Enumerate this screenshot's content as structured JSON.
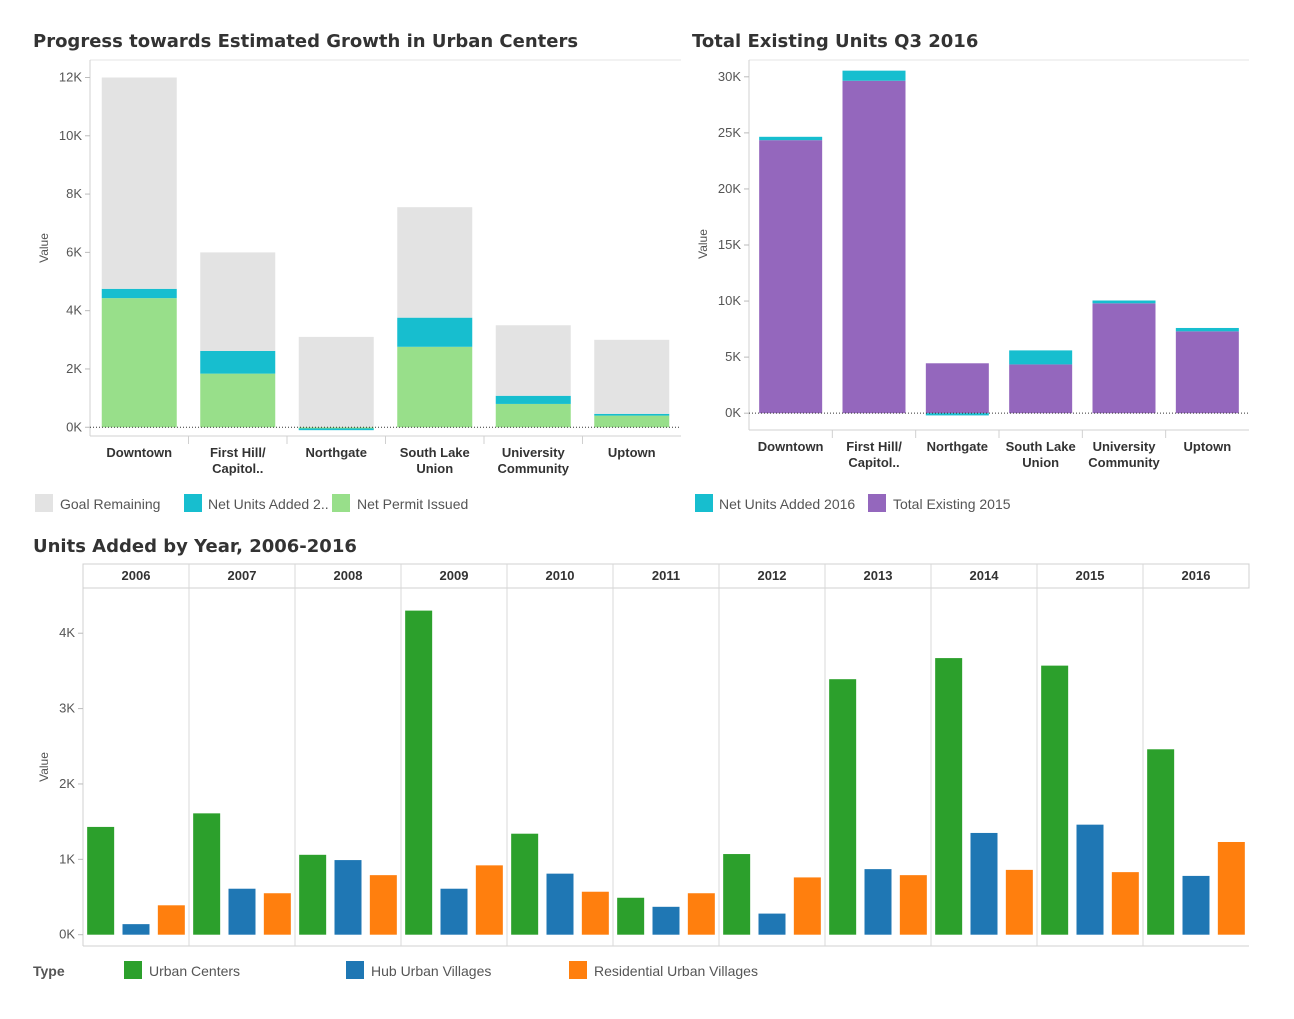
{
  "chart_data": [
    {
      "id": "progress",
      "type": "bar",
      "stacked": true,
      "title": "Progress towards Estimated Growth in Urban Centers",
      "ylabel": "Value",
      "ylim": [
        -300,
        12600
      ],
      "yticks": [
        {
          "v": 0,
          "label": "0K"
        },
        {
          "v": 2000,
          "label": "2K"
        },
        {
          "v": 4000,
          "label": "4K"
        },
        {
          "v": 6000,
          "label": "6K"
        },
        {
          "v": 8000,
          "label": "8K"
        },
        {
          "v": 10000,
          "label": "10K"
        },
        {
          "v": 12000,
          "label": "12K"
        }
      ],
      "categories": [
        [
          "Downtown"
        ],
        [
          "First Hill/",
          "Capitol.."
        ],
        [
          "Northgate"
        ],
        [
          "South Lake",
          "Union"
        ],
        [
          "University",
          "Community"
        ],
        [
          "Uptown"
        ]
      ],
      "series": [
        {
          "name": "Net Permit Issued",
          "color": "#98df8a",
          "values": [
            4430,
            1840,
            -40,
            2760,
            800,
            400
          ]
        },
        {
          "name": "Net Units Added 2..",
          "color": "#17becf",
          "values": [
            320,
            780,
            -60,
            1000,
            280,
            60
          ]
        },
        {
          "name": "Goal Remaining",
          "color": "#e3e3e3",
          "values": [
            7250,
            3380,
            3100,
            3790,
            2420,
            2540
          ]
        }
      ],
      "legend": [
        {
          "label": "Goal Remaining",
          "color": "#e3e3e3"
        },
        {
          "label": "Net Units Added 2..",
          "color": "#17becf"
        },
        {
          "label": "Net Permit Issued",
          "color": "#98df8a"
        }
      ]
    },
    {
      "id": "existing",
      "type": "bar",
      "stacked": true,
      "title": "Total Existing Units Q3 2016",
      "ylabel": "Value",
      "ylim": [
        -1500,
        31500
      ],
      "yticks": [
        {
          "v": 0,
          "label": "0K"
        },
        {
          "v": 5000,
          "label": "5K"
        },
        {
          "v": 10000,
          "label": "10K"
        },
        {
          "v": 15000,
          "label": "15K"
        },
        {
          "v": 20000,
          "label": "20K"
        },
        {
          "v": 25000,
          "label": "25K"
        },
        {
          "v": 30000,
          "label": "30K"
        }
      ],
      "categories": [
        [
          "Downtown"
        ],
        [
          "First Hill/",
          "Capitol.."
        ],
        [
          "Northgate"
        ],
        [
          "South Lake",
          "Union"
        ],
        [
          "University",
          "Community"
        ],
        [
          "Uptown"
        ]
      ],
      "series": [
        {
          "name": "Total Existing 2015",
          "color": "#9467bd",
          "values": [
            24350,
            29650,
            4450,
            4350,
            9800,
            7300
          ]
        },
        {
          "name": "Net Units Added 2016",
          "color": "#17becf",
          "values": [
            300,
            900,
            -200,
            1250,
            250,
            300
          ]
        }
      ],
      "legend": [
        {
          "label": "Net Units Added 2016",
          "color": "#17becf"
        },
        {
          "label": "Total Existing 2015",
          "color": "#9467bd"
        }
      ]
    },
    {
      "id": "byyear",
      "type": "bar",
      "title": "Units Added by Year, 2006-2016",
      "ylabel": "Value",
      "ylim": [
        -150,
        4600
      ],
      "yticks": [
        {
          "v": 0,
          "label": "0K"
        },
        {
          "v": 1000,
          "label": "1K"
        },
        {
          "v": 2000,
          "label": "2K"
        },
        {
          "v": 3000,
          "label": "3K"
        },
        {
          "v": 4000,
          "label": "4K"
        }
      ],
      "categories": [
        "2006",
        "2007",
        "2008",
        "2009",
        "2010",
        "2011",
        "2012",
        "2013",
        "2014",
        "2015",
        "2016"
      ],
      "legend_title": "Type",
      "series": [
        {
          "name": "Urban Centers",
          "color": "#2ca02c",
          "values": [
            1430,
            1610,
            1060,
            4300,
            1340,
            490,
            1070,
            3390,
            3670,
            3570,
            2460
          ]
        },
        {
          "name": "Hub Urban Villages",
          "color": "#1f77b4",
          "values": [
            140,
            610,
            990,
            610,
            810,
            370,
            280,
            870,
            1350,
            1460,
            780
          ]
        },
        {
          "name": "Residential Urban Villages",
          "color": "#ff7f0e",
          "values": [
            390,
            550,
            790,
            920,
            570,
            550,
            760,
            790,
            860,
            830,
            1230
          ]
        }
      ]
    }
  ]
}
